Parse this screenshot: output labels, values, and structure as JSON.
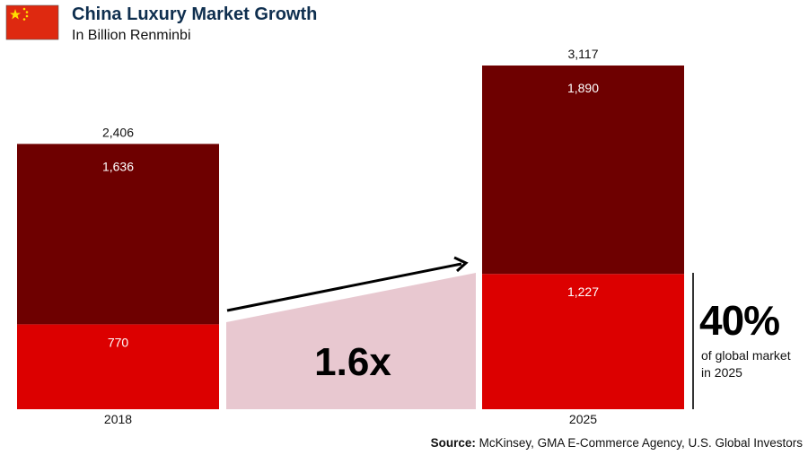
{
  "header": {
    "title": "China Luxury Market Growth",
    "subtitle": "In Billion Renminbi",
    "flag_icon": "china-flag-icon"
  },
  "chart_data": {
    "type": "bar",
    "stacked": true,
    "title": "China Luxury Market Growth",
    "subtitle": "In Billion Renminbi",
    "categories": [
      "2018",
      "2025"
    ],
    "series": [
      {
        "name": "bottom",
        "color": "#dc0000",
        "values": [
          770,
          1227
        ]
      },
      {
        "name": "top",
        "color": "#6e0000",
        "values": [
          1636,
          1890
        ]
      }
    ],
    "totals": [
      "2,406",
      "3,117"
    ],
    "segment_labels": [
      [
        "770",
        "1,636"
      ],
      [
        "1,227",
        "1,890"
      ]
    ],
    "growth_label": "1.6x",
    "ylim": [
      0,
      3117
    ]
  },
  "callout": {
    "value": "40%",
    "text_line1": "of global market",
    "text_line2": "in 2025"
  },
  "source": {
    "label": "Source:",
    "text": " McKinsey, GMA E-Commerce Agency, U.S. Global Investors"
  },
  "colors": {
    "dark": "#6e0000",
    "red": "#dc0000",
    "band": "#e8c8d0",
    "title": "#0f2f4f"
  }
}
